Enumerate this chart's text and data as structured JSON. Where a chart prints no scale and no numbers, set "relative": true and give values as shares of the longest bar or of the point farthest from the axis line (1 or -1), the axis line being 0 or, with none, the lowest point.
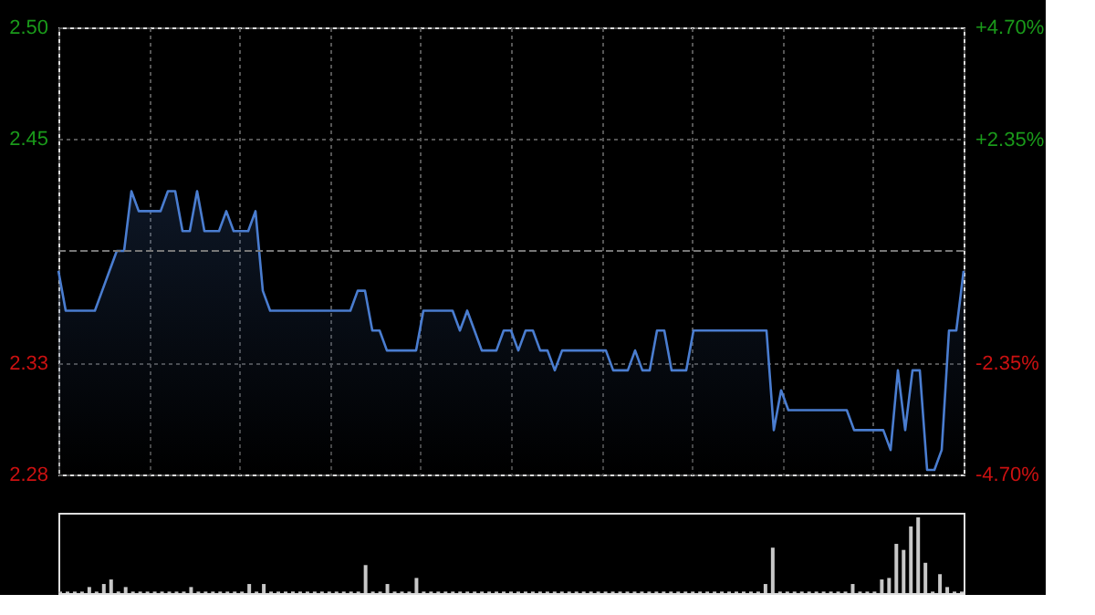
{
  "chart_data": [
    {
      "type": "area",
      "categories": [
        null,
        null,
        null,
        null,
        null,
        null,
        null,
        null,
        null,
        null,
        null,
        null,
        null,
        null,
        null,
        null,
        null,
        null,
        null,
        null,
        null,
        null,
        null,
        null,
        null,
        null,
        null,
        null,
        null,
        null,
        null,
        null,
        null,
        null,
        null,
        null,
        null,
        null,
        null,
        null,
        null,
        null,
        null,
        null,
        null,
        null,
        null,
        null,
        null,
        null,
        null,
        null,
        null,
        null,
        null,
        null,
        null,
        null,
        null,
        null,
        null,
        null,
        null,
        null,
        null,
        null,
        null,
        null,
        null,
        null,
        null,
        null,
        null,
        null,
        null,
        null,
        null,
        null,
        null,
        null,
        null,
        null,
        null,
        null,
        null,
        null,
        null,
        null,
        null,
        null,
        null,
        null,
        null,
        null,
        null,
        null,
        null,
        null,
        null,
        null,
        null,
        null,
        null,
        null,
        null,
        null,
        null,
        null,
        null,
        null,
        null,
        null,
        null,
        null,
        null,
        null,
        null,
        null,
        null,
        null,
        null,
        null,
        null,
        null,
        null
      ],
      "series": [
        {
          "color": "#4a7dd0",
          "values": [
            2.38,
            2.36,
            2.36,
            2.36,
            2.36,
            2.36,
            2.37,
            2.38,
            2.39,
            2.39,
            2.42,
            2.41,
            2.41,
            2.41,
            2.41,
            2.42,
            2.42,
            2.4,
            2.4,
            2.42,
            2.4,
            2.4,
            2.4,
            2.41,
            2.4,
            2.4,
            2.4,
            2.41,
            2.37,
            2.36,
            2.36,
            2.36,
            2.36,
            2.36,
            2.36,
            2.36,
            2.36,
            2.36,
            2.36,
            2.36,
            2.36,
            2.37,
            2.37,
            2.35,
            2.35,
            2.34,
            2.34,
            2.34,
            2.34,
            2.34,
            2.36,
            2.36,
            2.36,
            2.36,
            2.36,
            2.35,
            2.36,
            2.35,
            2.34,
            2.34,
            2.34,
            2.35,
            2.35,
            2.34,
            2.35,
            2.35,
            2.34,
            2.34,
            2.33,
            2.34,
            2.34,
            2.34,
            2.34,
            2.34,
            2.34,
            2.34,
            2.33,
            2.33,
            2.33,
            2.34,
            2.33,
            2.33,
            2.35,
            2.35,
            2.33,
            2.33,
            2.33,
            2.35,
            2.35,
            2.35,
            2.35,
            2.35,
            2.35,
            2.35,
            2.35,
            2.35,
            2.35,
            2.35,
            2.3,
            2.32,
            2.31,
            2.31,
            2.31,
            2.31,
            2.31,
            2.31,
            2.31,
            2.31,
            2.31,
            2.3,
            2.3,
            2.3,
            2.3,
            2.3,
            2.29,
            2.33,
            2.3,
            2.33,
            2.33,
            2.28,
            2.28,
            2.29,
            2.35,
            2.35,
            2.38
          ]
        }
      ],
      "ylim": [
        2.2777,
        2.5023
      ],
      "yticks": [
        {
          "value": 2.5023,
          "label": "2.50"
        },
        {
          "value": 2.4462,
          "label": "2.45"
        },
        {
          "value": 2.3338,
          "label": "2.33"
        },
        {
          "value": 2.2777,
          "label": "2.28"
        }
      ],
      "y2lim": [
        -4.7,
        4.7
      ],
      "y2ticks": [
        {
          "value": 4.7,
          "label": "+4.70%"
        },
        {
          "value": 2.35,
          "label": "+2.35%"
        },
        {
          "value": -2.35,
          "label": "-2.35%"
        },
        {
          "value": -4.7,
          "label": "-4.70%"
        }
      ],
      "ref_lines": [
        {
          "axis": "y",
          "value": 2.39,
          "color": "#777777",
          "line_style": "dashed"
        }
      ],
      "grid": true
    },
    {
      "type": "bar",
      "relative": true,
      "color": "#c8c8c8",
      "categories": [
        null,
        null,
        null,
        null,
        null,
        null,
        null,
        null,
        null,
        null,
        null,
        null,
        null,
        null,
        null,
        null,
        null,
        null,
        null,
        null,
        null,
        null,
        null,
        null,
        null,
        null,
        null,
        null,
        null,
        null,
        null,
        null,
        null,
        null,
        null,
        null,
        null,
        null,
        null,
        null,
        null,
        null,
        null,
        null,
        null,
        null,
        null,
        null,
        null,
        null,
        null,
        null,
        null,
        null,
        null,
        null,
        null,
        null,
        null,
        null,
        null,
        null,
        null,
        null,
        null,
        null,
        null,
        null,
        null,
        null,
        null,
        null,
        null,
        null,
        null,
        null,
        null,
        null,
        null,
        null,
        null,
        null,
        null,
        null,
        null,
        null,
        null,
        null,
        null,
        null,
        null,
        null,
        null,
        null,
        null,
        null,
        null,
        null,
        null,
        null,
        null,
        null,
        null,
        null,
        null,
        null,
        null,
        null,
        null,
        null,
        null,
        null,
        null,
        null,
        null,
        null,
        null,
        null,
        null,
        null,
        null,
        null,
        null,
        null,
        null
      ],
      "values": [
        0.02,
        0.02,
        0.02,
        0.02,
        0.08,
        0.02,
        0.12,
        0.18,
        0.02,
        0.08,
        0.02,
        0.02,
        0.02,
        0.02,
        0.02,
        0.02,
        0.02,
        0.02,
        0.08,
        0.02,
        0.02,
        0.02,
        0.02,
        0.02,
        0.02,
        0.02,
        0.12,
        0.02,
        0.12,
        0.02,
        0.02,
        0.02,
        0.02,
        0.02,
        0.02,
        0.02,
        0.02,
        0.02,
        0.02,
        0.02,
        0.02,
        0.02,
        0.37,
        0.02,
        0.02,
        0.12,
        0.02,
        0.02,
        0.02,
        0.2,
        0.02,
        0.02,
        0.02,
        0.02,
        0.02,
        0.02,
        0.02,
        0.02,
        0.02,
        0.02,
        0.02,
        0.02,
        0.02,
        0.02,
        0.02,
        0.02,
        0.02,
        0.02,
        0.02,
        0.02,
        0.02,
        0.02,
        0.02,
        0.02,
        0.02,
        0.02,
        0.02,
        0.02,
        0.02,
        0.02,
        0.02,
        0.02,
        0.02,
        0.02,
        0.02,
        0.02,
        0.02,
        0.02,
        0.02,
        0.02,
        0.02,
        0.02,
        0.02,
        0.02,
        0.02,
        0.02,
        0.02,
        0.12,
        0.6,
        0.02,
        0.02,
        0.02,
        0.02,
        0.02,
        0.02,
        0.02,
        0.02,
        0.02,
        0.02,
        0.12,
        0.02,
        0.02,
        0.02,
        0.18,
        0.2,
        0.65,
        0.57,
        0.88,
        1,
        0.4,
        0.02,
        0.25,
        0.08,
        0.02,
        0.02
      ]
    }
  ]
}
